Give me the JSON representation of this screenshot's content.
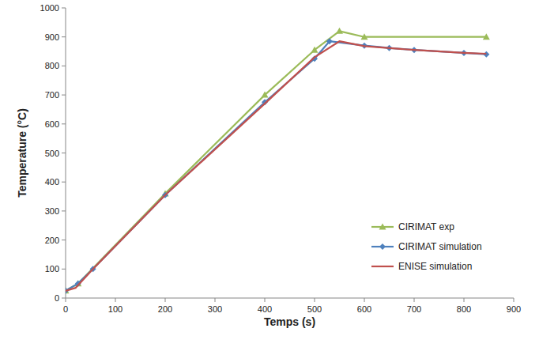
{
  "chart_data": {
    "type": "line",
    "x_label": "Temps (s)",
    "y_label": "Temperature (°C)",
    "xlim": [
      0,
      900
    ],
    "xticks": [
      0,
      100,
      200,
      300,
      400,
      500,
      600,
      700,
      800,
      900
    ],
    "ylim": [
      0,
      1000
    ],
    "yticks": [
      0,
      100,
      200,
      300,
      400,
      500,
      600,
      700,
      800,
      900,
      1000
    ],
    "grid": false,
    "legend": "lower right",
    "series": [
      {
        "name": "CIRIMAT exp",
        "color": "#9bbb59",
        "marker": "triangle",
        "x": [
          0,
          25,
          200,
          400,
          500,
          550,
          600,
          845
        ],
        "values": [
          25,
          50,
          360,
          700,
          855,
          920,
          900,
          900
        ]
      },
      {
        "name": "CIRIMAT simulation",
        "color": "#4f81bd",
        "marker": "diamond",
        "x": [
          0,
          25,
          55,
          200,
          400,
          500,
          530,
          600,
          650,
          700,
          800,
          845
        ],
        "values": [
          25,
          50,
          100,
          355,
          675,
          825,
          885,
          870,
          862,
          855,
          845,
          840
        ]
      },
      {
        "name": "ENISE simulation",
        "color": "#c0504d",
        "marker": "none",
        "x": [
          0,
          20,
          55,
          200,
          400,
          500,
          550,
          600,
          700,
          800,
          845
        ],
        "values": [
          25,
          35,
          100,
          355,
          670,
          830,
          885,
          868,
          855,
          845,
          842
        ]
      }
    ]
  }
}
